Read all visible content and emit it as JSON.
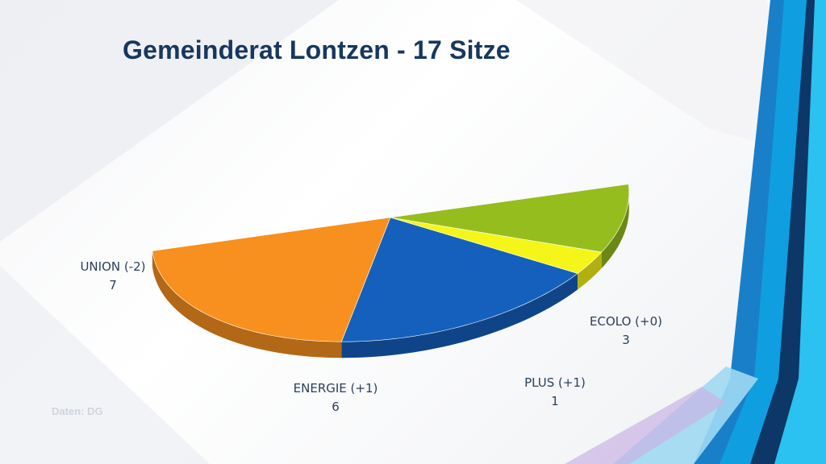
{
  "title": "Gemeinderat Lontzen - 17 Sitze",
  "source": "Daten: DG",
  "chart_data": {
    "type": "pie",
    "title": "Gemeinderat Lontzen - 17 Sitze",
    "total": 17,
    "slices": [
      {
        "name": "UNION (-2)",
        "value": 7,
        "color": "#f7901e"
      },
      {
        "name": "ENERGIE (+1)",
        "value": 6,
        "color": "#1560bd"
      },
      {
        "name": "PLUS (+1)",
        "value": 1,
        "color": "#f5f51a"
      },
      {
        "name": "ECOLO (+0)",
        "value": 3,
        "color": "#95bd1e"
      }
    ],
    "style": "3d-half-pie"
  }
}
